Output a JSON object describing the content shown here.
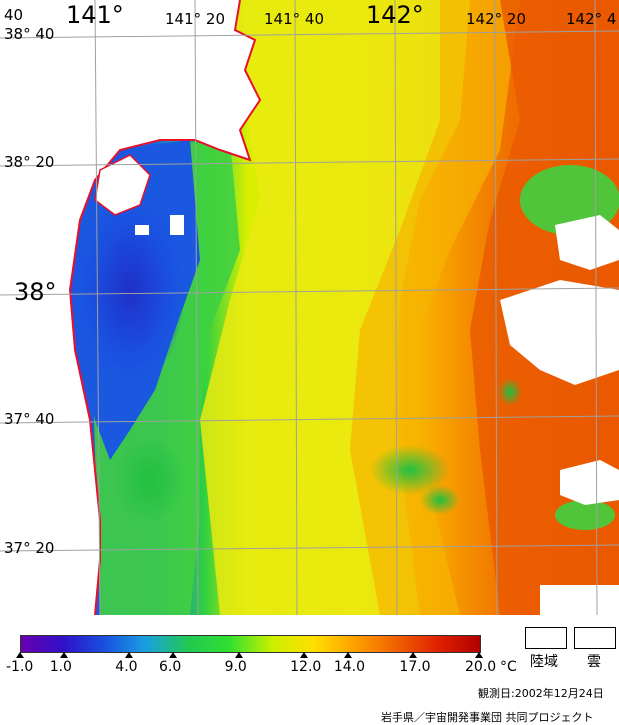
{
  "map": {
    "lon_labels": {
      "left_edge": "40",
      "d141": "141°",
      "d141_20": "141° 20",
      "d141_40": "141° 40",
      "d142": "142°",
      "d142_20": "142° 20",
      "right_edge": "142° 4"
    },
    "lat_labels": {
      "d38_40": "38° 40",
      "d38_20": "38° 20",
      "d38": "38°",
      "d37_40": "37° 40",
      "d37_20": "37° 20"
    },
    "colors": {
      "coastline": "#e8102a",
      "grid": "#a0a0a0",
      "land": "#ffffff",
      "sea_yellow": "#e8e800",
      "sea_orange": "#f08a00",
      "sea_red": "#e84a00",
      "sea_green": "#40d040",
      "sea_blue": "#2050e0",
      "sea_darkblue": "#2020c0"
    }
  },
  "legend": {
    "ticks": [
      "-1.0",
      "1.0",
      "4.0",
      "6.0",
      "9.0",
      "12.0",
      "14.0",
      "17.0",
      "20.0"
    ],
    "unit": "°C",
    "land_label": "陸域",
    "cloud_label": "雲",
    "gradient_colors": [
      "#6a00b0",
      "#3010c8",
      "#1850e0",
      "#1aa0e0",
      "#20c850",
      "#30e030",
      "#c8f000",
      "#ffe000",
      "#ffa000",
      "#f06000",
      "#e02000",
      "#b00000"
    ]
  },
  "footer": {
    "observation_date": "観測日:2002年12月24日",
    "credit": "岩手県／宇宙開発事業団 共同プロジェクト"
  }
}
